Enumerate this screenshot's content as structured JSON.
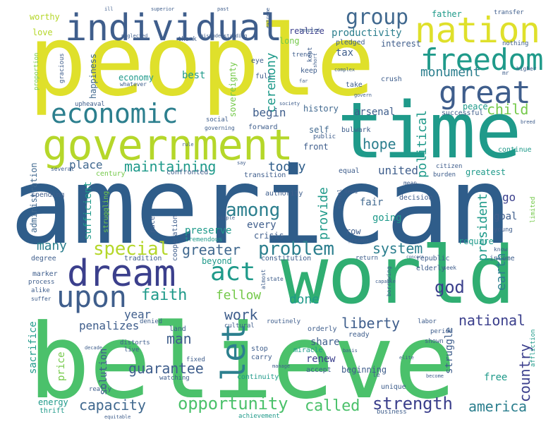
{
  "colors": {
    "navy": "#2f5d8a",
    "deep_blue": "#34508f",
    "indigo": "#3b3f8c",
    "slate": "#3f5e8c",
    "blue_grey": "#41698f",
    "teal_blue": "#2c7f8e",
    "teal": "#1f9a8a",
    "green": "#30ae72",
    "emerald": "#4bc16b",
    "lime": "#74c94a",
    "yellow_green": "#b5d72a",
    "yellow": "#dfe02b",
    "purple": "#462f7a"
  },
  "words": [
    {
      "text": "people",
      "color": "yellow"
    },
    {
      "text": "american",
      "color": "navy"
    },
    {
      "text": "believe",
      "color": "emerald"
    },
    {
      "text": "world",
      "color": "green"
    },
    {
      "text": "time",
      "color": "teal"
    },
    {
      "text": "government",
      "color": "yellow_green"
    },
    {
      "text": "individual",
      "color": "slate"
    },
    {
      "text": "nation",
      "color": "yellow"
    },
    {
      "text": "dream",
      "color": "indigo"
    },
    {
      "text": "freedom",
      "color": "teal"
    },
    {
      "text": "great",
      "color": "slate"
    },
    {
      "text": "economic",
      "color": "teal_blue"
    },
    {
      "text": "group",
      "color": "blue_grey"
    },
    {
      "text": "upon",
      "color": "slate"
    },
    {
      "text": "act",
      "color": "teal"
    },
    {
      "text": "let",
      "color": "teal_blue"
    },
    {
      "text": "special",
      "color": "yellow_green"
    },
    {
      "text": "among",
      "color": "teal_blue"
    },
    {
      "text": "problem",
      "color": "teal_blue"
    },
    {
      "text": "opportunity",
      "color": "emerald"
    },
    {
      "text": "strength",
      "color": "indigo"
    },
    {
      "text": "america",
      "color": "teal_blue"
    },
    {
      "text": "capacity",
      "color": "blue_grey"
    },
    {
      "text": "called",
      "color": "emerald"
    },
    {
      "text": "maintaining",
      "color": "teal"
    },
    {
      "text": "monument",
      "color": "teal_blue"
    },
    {
      "text": "child",
      "color": "lime"
    },
    {
      "text": "national",
      "color": "indigo"
    },
    {
      "text": "liberty",
      "color": "slate"
    },
    {
      "text": "system",
      "color": "teal_blue"
    },
    {
      "text": "greater",
      "color": "blue_grey"
    },
    {
      "text": "god",
      "color": "indigo"
    },
    {
      "text": "faith",
      "color": "teal"
    },
    {
      "text": "work",
      "color": "slate"
    },
    {
      "text": "man",
      "color": "slate"
    },
    {
      "text": "guarantee",
      "color": "slate"
    },
    {
      "text": "country",
      "color": "indigo"
    },
    {
      "text": "earth",
      "color": "teal_blue"
    },
    {
      "text": "president",
      "color": "teal"
    },
    {
      "text": "ceremony",
      "color": "teal"
    },
    {
      "text": "political",
      "color": "teal"
    },
    {
      "text": "provide",
      "color": "teal"
    },
    {
      "text": "hope",
      "color": "teal_blue"
    },
    {
      "text": "today",
      "color": "navy"
    },
    {
      "text": "place",
      "color": "blue_grey"
    },
    {
      "text": "many",
      "color": "teal_blue"
    },
    {
      "text": "fellow",
      "color": "lime"
    },
    {
      "text": "done",
      "color": "teal"
    },
    {
      "text": "year",
      "color": "slate"
    },
    {
      "text": "penalizes",
      "color": "slate"
    },
    {
      "text": "united",
      "color": "slate"
    },
    {
      "text": "begin",
      "color": "slate"
    },
    {
      "text": "productivity",
      "color": "teal_blue"
    },
    {
      "text": "tax",
      "color": "slate"
    },
    {
      "text": "sacrifice",
      "color": "teal"
    },
    {
      "text": "energy",
      "color": "teal"
    },
    {
      "text": "every",
      "color": "slate"
    },
    {
      "text": "go",
      "color": "indigo"
    },
    {
      "text": "fair",
      "color": "blue_grey"
    },
    {
      "text": "going",
      "color": "teal"
    },
    {
      "text": "history",
      "color": "blue_grey"
    },
    {
      "text": "arsenal",
      "color": "slate"
    },
    {
      "text": "peace",
      "color": "teal"
    },
    {
      "text": "self",
      "color": "blue_grey"
    },
    {
      "text": "front",
      "color": "slate"
    },
    {
      "text": "realize",
      "color": "indigo"
    },
    {
      "text": "father",
      "color": "teal"
    },
    {
      "text": "interest",
      "color": "slate"
    },
    {
      "text": "long",
      "color": "lime"
    },
    {
      "text": "best",
      "color": "teal"
    },
    {
      "text": "economy",
      "color": "teal"
    },
    {
      "text": "sufficient",
      "color": "teal"
    },
    {
      "text": "sovereignty",
      "color": "lime"
    },
    {
      "text": "happiness",
      "color": "blue_grey"
    },
    {
      "text": "administration",
      "color": "blue_grey"
    },
    {
      "text": "preserve",
      "color": "teal"
    },
    {
      "text": "crisis",
      "color": "slate"
    },
    {
      "text": "row",
      "color": "slate"
    },
    {
      "text": "require",
      "color": "teal"
    },
    {
      "text": "goal",
      "color": "slate"
    },
    {
      "text": "share",
      "color": "slate"
    },
    {
      "text": "free",
      "color": "teal"
    },
    {
      "text": "beginning",
      "color": "slate"
    },
    {
      "text": "struggle",
      "color": "slate"
    },
    {
      "text": "renew",
      "color": "indigo"
    },
    {
      "text": "solution",
      "color": "slate"
    },
    {
      "text": "price",
      "color": "lime"
    },
    {
      "text": "love",
      "color": "yellow_green"
    },
    {
      "text": "worthy",
      "color": "yellow_green"
    },
    {
      "text": "eye",
      "color": "slate"
    },
    {
      "text": "full",
      "color": "slate"
    },
    {
      "text": "keep",
      "color": "slate"
    },
    {
      "text": "crush",
      "color": "slate"
    },
    {
      "text": "take",
      "color": "slate"
    },
    {
      "text": "pledged",
      "color": "slate"
    },
    {
      "text": "greatest",
      "color": "teal"
    },
    {
      "text": "equal",
      "color": "slate"
    },
    {
      "text": "continue",
      "color": "teal"
    },
    {
      "text": "successful",
      "color": "slate"
    },
    {
      "text": "bulwark",
      "color": "slate"
    },
    {
      "text": "public",
      "color": "slate"
    },
    {
      "text": "forward",
      "color": "slate"
    },
    {
      "text": "social",
      "color": "slate"
    },
    {
      "text": "transition",
      "color": "slate"
    },
    {
      "text": "confronted",
      "color": "slate"
    },
    {
      "text": "century",
      "color": "lime"
    },
    {
      "text": "spending",
      "color": "slate"
    },
    {
      "text": "several",
      "color": "slate"
    },
    {
      "text": "cooperation",
      "color": "slate"
    },
    {
      "text": "pace",
      "color": "slate"
    },
    {
      "text": "struggling",
      "color": "lime"
    },
    {
      "text": "tremendous",
      "color": "teal"
    },
    {
      "text": "tradition",
      "color": "slate"
    },
    {
      "text": "degree",
      "color": "slate"
    },
    {
      "text": "marker",
      "color": "slate"
    },
    {
      "text": "process",
      "color": "slate"
    },
    {
      "text": "alike",
      "color": "slate"
    },
    {
      "text": "suffer",
      "color": "slate"
    },
    {
      "text": "beyond",
      "color": "teal"
    },
    {
      "text": "constitution",
      "color": "slate"
    },
    {
      "text": "authority",
      "color": "slate"
    },
    {
      "text": "decision",
      "color": "slate"
    },
    {
      "text": "republic",
      "color": "slate"
    },
    {
      "text": "elderly",
      "color": "slate"
    },
    {
      "text": "income",
      "color": "slate"
    },
    {
      "text": "know",
      "color": "slate"
    },
    {
      "text": "young",
      "color": "slate"
    },
    {
      "text": "limited",
      "color": "lime"
    },
    {
      "text": "seek",
      "color": "slate"
    },
    {
      "text": "labor",
      "color": "slate"
    },
    {
      "text": "period",
      "color": "slate"
    },
    {
      "text": "shown",
      "color": "slate"
    },
    {
      "text": "ready",
      "color": "slate"
    },
    {
      "text": "orderly",
      "color": "slate"
    },
    {
      "text": "routinely",
      "color": "slate"
    },
    {
      "text": "cultural",
      "color": "slate"
    },
    {
      "text": "land",
      "color": "slate"
    },
    {
      "text": "denied",
      "color": "slate"
    },
    {
      "text": "distorts",
      "color": "slate"
    },
    {
      "text": "fixed",
      "color": "slate"
    },
    {
      "text": "live",
      "color": "slate"
    },
    {
      "text": "watching",
      "color": "slate"
    },
    {
      "text": "continuity",
      "color": "teal"
    },
    {
      "text": "stop",
      "color": "slate"
    },
    {
      "text": "carry",
      "color": "slate"
    },
    {
      "text": "miracle",
      "color": "teal"
    },
    {
      "text": "accept",
      "color": "slate"
    },
    {
      "text": "unique",
      "color": "slate"
    },
    {
      "text": "business",
      "color": "slate"
    },
    {
      "text": "achievement",
      "color": "teal"
    },
    {
      "text": "thrift",
      "color": "teal"
    },
    {
      "text": "really",
      "color": "slate"
    },
    {
      "text": "affliction",
      "color": "teal"
    },
    {
      "text": "capable",
      "color": "slate"
    },
    {
      "text": "return",
      "color": "slate"
    },
    {
      "text": "normal",
      "color": "slate"
    },
    {
      "text": "borrowing",
      "color": "slate"
    },
    {
      "text": "almost",
      "color": "slate"
    },
    {
      "text": "state",
      "color": "slate"
    },
    {
      "text": "need",
      "color": "slate"
    },
    {
      "text": "mean",
      "color": "slate"
    },
    {
      "text": "citizen",
      "color": "slate"
    },
    {
      "text": "burden",
      "color": "slate"
    },
    {
      "text": "trend",
      "color": "slate"
    },
    {
      "text": "kept",
      "color": "slate"
    },
    {
      "text": "gracious",
      "color": "slate"
    },
    {
      "text": "upheaval",
      "color": "slate"
    },
    {
      "text": "whatever",
      "color": "slate"
    },
    {
      "text": "thank",
      "color": "slate"
    },
    {
      "text": "neglected",
      "color": "slate"
    },
    {
      "text": "misunderstanding",
      "color": "slate"
    },
    {
      "text": "proportion",
      "color": "lime"
    },
    {
      "text": "transfer",
      "color": "slate"
    },
    {
      "text": "nothing",
      "color": "slate"
    },
    {
      "text": "higher",
      "color": "slate"
    },
    {
      "text": "breed",
      "color": "slate"
    },
    {
      "text": "superior",
      "color": "slate"
    },
    {
      "text": "past",
      "color": "slate"
    },
    {
      "text": "ill",
      "color": "slate"
    },
    {
      "text": "tempted",
      "color": "slate"
    },
    {
      "text": "society",
      "color": "slate"
    },
    {
      "text": "complex",
      "color": "slate"
    },
    {
      "text": "governing",
      "color": "slate"
    },
    {
      "text": "rule",
      "color": "slate"
    },
    {
      "text": "manage",
      "color": "slate"
    },
    {
      "text": "decade",
      "color": "slate"
    },
    {
      "text": "equitable",
      "color": "slate"
    },
    {
      "text": "become",
      "color": "slate"
    },
    {
      "text": "elite",
      "color": "slate"
    },
    {
      "text": "basis",
      "color": "slate"
    },
    {
      "text": "present",
      "color": "slate"
    },
    {
      "text": "concern",
      "color": "slate"
    },
    {
      "text": "simple",
      "color": "slate"
    },
    {
      "text": "le",
      "color": "slate"
    },
    {
      "text": "far",
      "color": "slate"
    },
    {
      "text": "mr",
      "color": "slate"
    },
    {
      "text": "say",
      "color": "slate"
    },
    {
      "text": "govern",
      "color": "slate"
    },
    {
      "text": "short",
      "color": "slate"
    },
    {
      "text": "extreme",
      "color": "slate"
    }
  ]
}
